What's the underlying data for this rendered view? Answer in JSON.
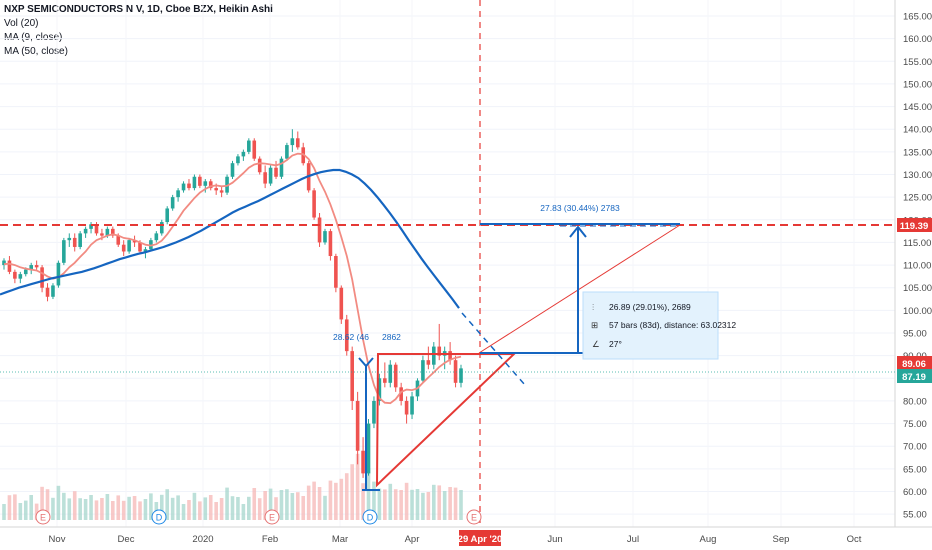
{
  "header": {
    "title": "NXP SEMICONDUCTORS N V, 1D, Cboe BZX, Heikin Ashi",
    "indicators": [
      "Vol (20)",
      "MA (9, close)",
      "MA (50, close)"
    ]
  },
  "colors": {
    "up": "#26a69a",
    "down": "#ef5350",
    "ma9": "#f28b82",
    "ma50": "#1565c0",
    "drawing_red": "#e53935",
    "drawing_blue": "#1565c0",
    "last_price": "#26a69a"
  },
  "chart_data": {
    "type": "candlestick",
    "y_axis": {
      "ticks": [
        "165.00",
        "160.00",
        "155.00",
        "150.00",
        "145.00",
        "140.00",
        "135.00",
        "130.00",
        "125.00",
        "120.00",
        "115.00",
        "110.00",
        "105.00",
        "100.00",
        "95.00",
        "90.00",
        "85.00",
        "80.00",
        "75.00",
        "70.00",
        "65.00",
        "60.00",
        "55.00"
      ],
      "range": [
        53,
        167
      ]
    },
    "x_axis": {
      "labels": [
        "Nov",
        "Dec",
        "2020",
        "Feb",
        "Mar",
        "Apr",
        "Jun",
        "Jul",
        "Aug",
        "Sep",
        "Oct"
      ],
      "cursor_label": "29 Apr '20"
    },
    "price_labels": [
      {
        "value": "119.39",
        "color": "#e53935"
      },
      {
        "value": "89.06",
        "color": "#e53935"
      },
      {
        "value": "87.19",
        "color": "#26a69a"
      }
    ],
    "events": [
      "E",
      "D",
      "E",
      "D",
      "E"
    ],
    "measures": [
      {
        "text": "27.83 (30.44%) 2783"
      },
      {
        "text": "28.62 (46",
        "text2": "2862"
      }
    ],
    "info_box": {
      "price_range": "26.89 (29.01%), 2689",
      "bars_range": "57 bars (83d), distance: 63.02312",
      "angle": "27°"
    },
    "candles_ohlc": [
      [
        110,
        111.5,
        109,
        111
      ],
      [
        111,
        112,
        108,
        108.5
      ],
      [
        108.5,
        109,
        106,
        107
      ],
      [
        107,
        108.5,
        106,
        108
      ],
      [
        108,
        109.5,
        107.5,
        109
      ],
      [
        109,
        110.5,
        108,
        110
      ],
      [
        110,
        111,
        109,
        109.5
      ],
      [
        109.5,
        110,
        104,
        105
      ],
      [
        105,
        106,
        102,
        103
      ],
      [
        103,
        106,
        102.5,
        105.5
      ],
      [
        105.5,
        111,
        105,
        110.5
      ],
      [
        110.5,
        116,
        110,
        115.5
      ],
      [
        115.5,
        117,
        114,
        116
      ],
      [
        116,
        117,
        113,
        114
      ],
      [
        114,
        117.5,
        113.5,
        117
      ],
      [
        117,
        118.5,
        116,
        118
      ],
      [
        118,
        119.5,
        117,
        119
      ],
      [
        119,
        119.5,
        116.5,
        117
      ],
      [
        117,
        118,
        115.5,
        116.5
      ],
      [
        116.5,
        118.5,
        116,
        118
      ],
      [
        118,
        118.5,
        116,
        116.5
      ],
      [
        116.5,
        117,
        114,
        114.5
      ],
      [
        114.5,
        115.5,
        112,
        113
      ],
      [
        113,
        116,
        112.5,
        115.5
      ],
      [
        115.5,
        116.5,
        114,
        115
      ],
      [
        115,
        115.5,
        112.5,
        113
      ],
      [
        113,
        114,
        111.5,
        113.5
      ],
      [
        113.5,
        116,
        113,
        115.5
      ],
      [
        115.5,
        117.5,
        115,
        117
      ],
      [
        117,
        120,
        116.5,
        119.5
      ],
      [
        119.5,
        123,
        119,
        122.5
      ],
      [
        122.5,
        125.5,
        122,
        125
      ],
      [
        125,
        127,
        124,
        126.5
      ],
      [
        126.5,
        128.5,
        126,
        128
      ],
      [
        128,
        129,
        126.5,
        127
      ],
      [
        127,
        130,
        126.5,
        129.5
      ],
      [
        129.5,
        130,
        127,
        127.5
      ],
      [
        127.5,
        129,
        126,
        128.5
      ],
      [
        128.5,
        129,
        126.5,
        127
      ],
      [
        127,
        128,
        125.5,
        126.5
      ],
      [
        126.5,
        127.5,
        125,
        126
      ],
      [
        126,
        130,
        125.5,
        129.5
      ],
      [
        129.5,
        133,
        129,
        132.5
      ],
      [
        132.5,
        134.5,
        132,
        134
      ],
      [
        134,
        135.5,
        133,
        135
      ],
      [
        135,
        138,
        134.5,
        137.5
      ],
      [
        137.5,
        138,
        133,
        133.5
      ],
      [
        133.5,
        134,
        130,
        130.5
      ],
      [
        130.5,
        132,
        127,
        128
      ],
      [
        128,
        132,
        127.5,
        131.5
      ],
      [
        131.5,
        133,
        129,
        129.5
      ],
      [
        129.5,
        134,
        129,
        133.5
      ],
      [
        133.5,
        137,
        133,
        136.5
      ],
      [
        136.5,
        140,
        135,
        138
      ],
      [
        138,
        139.5,
        135.5,
        136
      ],
      [
        136,
        137,
        132,
        132.5
      ],
      [
        132.5,
        133,
        126,
        126.5
      ],
      [
        126.5,
        127,
        120,
        120.5
      ],
      [
        120.5,
        121.5,
        114,
        115
      ],
      [
        115,
        118,
        114.5,
        117.5
      ],
      [
        117.5,
        118,
        111,
        112
      ],
      [
        112,
        112.5,
        104,
        105
      ],
      [
        105,
        105.5,
        97,
        98
      ],
      [
        98,
        99,
        90,
        91
      ],
      [
        91,
        92,
        78,
        80
      ],
      [
        80,
        82,
        66,
        69
      ],
      [
        69,
        72,
        63,
        64
      ],
      [
        64,
        76,
        63.5,
        75
      ],
      [
        75,
        81,
        74,
        80
      ],
      [
        80,
        86,
        79,
        85
      ],
      [
        85,
        88.5,
        83,
        84
      ],
      [
        84,
        89,
        83,
        88
      ],
      [
        88,
        88.5,
        82,
        83
      ],
      [
        83,
        84,
        79,
        80
      ],
      [
        80,
        81,
        75,
        77
      ],
      [
        77,
        82,
        76,
        81
      ],
      [
        81,
        85,
        80,
        84.5
      ],
      [
        84.5,
        90,
        84,
        89
      ],
      [
        89,
        92,
        87,
        88
      ],
      [
        88,
        93,
        87,
        92
      ],
      [
        92,
        97,
        89,
        90
      ],
      [
        90,
        92,
        87,
        91
      ],
      [
        91,
        93,
        88,
        89
      ],
      [
        89,
        90,
        83,
        84
      ],
      [
        84,
        88,
        83,
        87.19
      ]
    ],
    "ma9": [
      110.2,
      110.3,
      110,
      109.5,
      109.2,
      109,
      108.8,
      108.2,
      107.5,
      107,
      107.3,
      108.2,
      109.5,
      110.5,
      111.8,
      113,
      114.5,
      115.5,
      116,
      116.5,
      116.8,
      116.5,
      116,
      115.8,
      115.5,
      115,
      114.5,
      114.3,
      114.6,
      115.4,
      116.8,
      118.5,
      120.2,
      122,
      123.4,
      124.8,
      126,
      126.8,
      127.4,
      127.6,
      127.4,
      127.5,
      128.2,
      129.2,
      130.3,
      131.5,
      132.2,
      132.5,
      132.4,
      132.2,
      132,
      132.4,
      133.2,
      134.2,
      134.6,
      134.5,
      133.4,
      131.4,
      128.6,
      126.2,
      123.4,
      120,
      116.2,
      112,
      106.8,
      100.2,
      93.5,
      87.8,
      83.5,
      80.6,
      79.6,
      79.5,
      80.4,
      82,
      82.5,
      82.4,
      82.8,
      84,
      85.2,
      86.3,
      87.5,
      88.4,
      89.1,
      89.5,
      89.8
    ],
    "ma50": [
      103.5,
      104,
      104.5,
      105,
      105.4,
      105.8,
      106.2,
      106.6,
      107,
      107.3,
      107.6,
      107.9,
      108.2,
      108.5,
      108.9,
      109.3,
      109.8,
      110.3,
      110.8,
      111.3,
      111.7,
      112.1,
      112.5,
      112.8,
      113.2,
      113.6,
      114,
      114.5,
      115,
      115.6,
      116.2,
      116.9,
      117.6,
      118.4,
      119.2,
      120,
      120.8,
      121.6,
      122.3,
      122.9,
      123.5,
      124.1,
      124.8,
      125.5,
      126.2,
      126.9,
      127.6,
      128.3,
      129,
      129.6,
      130.1,
      130.5,
      130.8,
      131,
      131,
      130.6,
      130,
      129.2,
      128,
      126.6,
      125,
      123.3,
      121.5,
      119.6,
      117.6,
      115.5,
      113.5,
      111.5,
      109.6,
      107.8,
      106,
      104.2,
      102.4,
      100.5
    ]
  }
}
